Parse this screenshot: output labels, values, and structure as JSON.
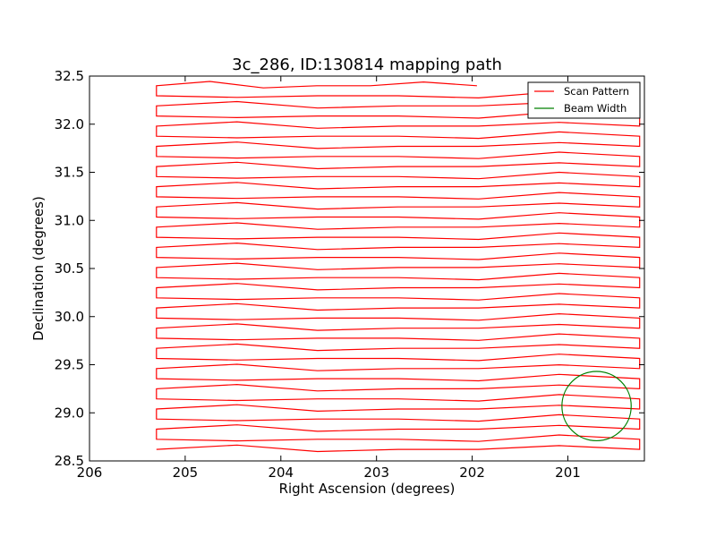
{
  "chart_data": {
    "type": "line",
    "title": "3c_286, ID:130814 mapping path",
    "xlabel": "Right Ascension (degrees)",
    "ylabel": "Declination (degrees)",
    "xlim": [
      206,
      200.2
    ],
    "ylim": [
      28.5,
      32.5
    ],
    "x_inverted": true,
    "xticks": [
      206,
      205,
      204,
      203,
      202,
      201
    ],
    "xtick_labels": [
      "206",
      "205",
      "204",
      "203",
      "202",
      "201"
    ],
    "yticks": [
      28.5,
      29.0,
      29.5,
      30.0,
      30.5,
      31.0,
      31.5,
      32.0,
      32.5
    ],
    "ytick_labels": [
      "28.5",
      "29.0",
      "29.5",
      "30.0",
      "30.5",
      "31.0",
      "31.5",
      "32.0",
      "32.5"
    ],
    "grid": false,
    "legend_position": "top-right",
    "series": [
      {
        "name": "Scan Pattern",
        "color": "#ff0000",
        "scan_path": {
          "dec_start": 28.62,
          "dec_end": 32.4,
          "num_passes": 37,
          "ra_left": 205.3,
          "ra_right": 200.25,
          "final_pass_ra_end": 201.95
        }
      },
      {
        "name": "Beam Width",
        "color": "#008000",
        "circle": {
          "ra_center": 200.7,
          "dec_center": 29.07,
          "radius_deg": 0.36
        }
      }
    ]
  }
}
